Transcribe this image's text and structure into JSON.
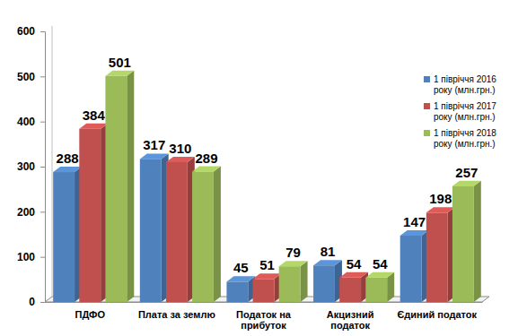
{
  "chart_data": {
    "type": "bar",
    "categories": [
      "ПДФО",
      "Плата за землю",
      "Податок на прибуток",
      "Акцизний податок",
      "Єдиний податок"
    ],
    "series": [
      {
        "name": "1 півріччя 2016 року (млн.грн.)",
        "color": "#4f81bd",
        "values": [
          288,
          317,
          45,
          81,
          147
        ]
      },
      {
        "name": "1 півріччя 2017 року (млн.грн.)",
        "color": "#c0504d",
        "values": [
          384,
          310,
          51,
          54,
          198
        ]
      },
      {
        "name": "1 півріччя 2018 року (млн.грн.)",
        "color": "#9bbb59",
        "values": [
          501,
          289,
          79,
          54,
          257
        ]
      }
    ],
    "ylim": [
      0,
      600
    ],
    "yticks": [
      0,
      100,
      200,
      300,
      400,
      500,
      600
    ],
    "grid": false,
    "legend": "right",
    "data_labels": true
  }
}
